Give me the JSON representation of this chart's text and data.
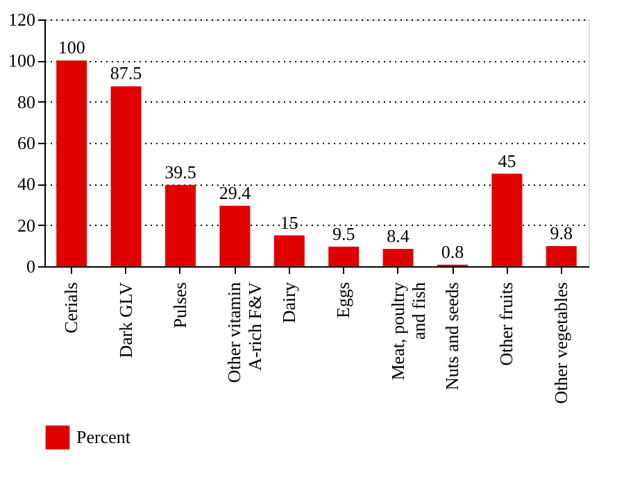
{
  "chart_data": {
    "type": "bar",
    "categories": [
      "Cerials",
      "Dark GLV",
      "Pulses",
      "Other vitamin\nA-rich F&V",
      "Dairy",
      "Eggs",
      "Meat, poultry\nand fish",
      "Nuts and seeds",
      "Other fruits",
      "Other vegetables"
    ],
    "series": [
      {
        "name": "Percent",
        "color": "#e00000",
        "values": [
          100,
          87.5,
          39.5,
          29.4,
          15,
          9.5,
          8.4,
          0.8,
          45,
          9.8
        ]
      }
    ],
    "ylim": [
      0,
      120
    ],
    "yticks": [
      0,
      20,
      40,
      60,
      80,
      100,
      120
    ],
    "grid": "y",
    "legend": "bottom left",
    "data_labels": true
  }
}
